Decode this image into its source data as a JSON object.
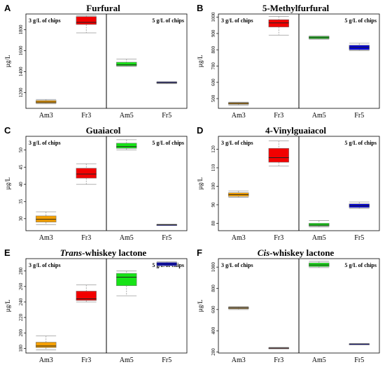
{
  "chart_data": [
    {
      "type": "box",
      "letter": "A",
      "title": "Furfural",
      "title_parts": [
        {
          "text": "Furfural",
          "italic": false
        }
      ],
      "ylabel": "µg/L",
      "notes": [
        "3 g/L of chips",
        "5 g/L of chips"
      ],
      "categories": [
        "Am3",
        "Fr3",
        "Am5",
        "Fr5"
      ],
      "colors": [
        "#f5a000",
        "#f20000",
        "#17e317",
        "#0000d8"
      ],
      "ylim": [
        1050,
        1950
      ],
      "yticks": [
        1200,
        1400,
        1600,
        1800
      ],
      "boxes": [
        {
          "min": 1095,
          "q1": 1100,
          "median": 1110,
          "q3": 1125,
          "max": 1135
        },
        {
          "min": 1770,
          "q1": 1850,
          "median": 1870,
          "q3": 1925,
          "max": 1935
        },
        {
          "min": 1450,
          "q1": 1455,
          "median": 1465,
          "q3": 1490,
          "max": 1520
        },
        {
          "min": 1285,
          "q1": 1290,
          "median": 1295,
          "q3": 1302,
          "max": 1305
        }
      ]
    },
    {
      "type": "box",
      "letter": "B",
      "title": "5-Methylfurfural",
      "title_parts": [
        {
          "text": "5-Methylfurfural",
          "italic": false
        }
      ],
      "ylabel": "µg/L",
      "notes": [
        "3 g/L of chips",
        "5 g/L of chips"
      ],
      "categories": [
        "Am3",
        "Fr3",
        "Am5",
        "Fr5"
      ],
      "colors": [
        "#f5a000",
        "#f20000",
        "#17e317",
        "#0000d8"
      ],
      "ylim": [
        440,
        1020
      ],
      "yticks": [
        500,
        600,
        700,
        800,
        900,
        1000
      ],
      "boxes": [
        {
          "min": 460,
          "q1": 465,
          "median": 470,
          "q3": 475,
          "max": 478
        },
        {
          "min": 890,
          "q1": 940,
          "median": 965,
          "q3": 985,
          "max": 1005
        },
        {
          "min": 865,
          "q1": 868,
          "median": 875,
          "q3": 882,
          "max": 885
        },
        {
          "min": 795,
          "q1": 800,
          "median": 815,
          "q3": 828,
          "max": 840
        }
      ]
    },
    {
      "type": "box",
      "letter": "C",
      "title": "Guaiacol",
      "title_parts": [
        {
          "text": "Guaiacol",
          "italic": false
        }
      ],
      "ylabel": "µg/L",
      "notes": [
        "3 g/L of chips",
        "5 g/L of chips"
      ],
      "categories": [
        "Am3",
        "Fr3",
        "Am5",
        "Fr5"
      ],
      "colors": [
        "#f5a000",
        "#f20000",
        "#17e317",
        "#0000d8"
      ],
      "ylim": [
        26.5,
        54
      ],
      "yticks": [
        30,
        35,
        40,
        45,
        50
      ],
      "boxes": [
        {
          "min": 28.3,
          "q1": 29.0,
          "median": 29.8,
          "q3": 30.8,
          "max": 32.0
        },
        {
          "min": 40.0,
          "q1": 41.8,
          "median": 43.0,
          "q3": 44.7,
          "max": 46.0
        },
        {
          "min": 50.0,
          "q1": 50.5,
          "median": 51.0,
          "q3": 52.0,
          "max": 53.0
        },
        {
          "min": 28.0,
          "q1": 28.1,
          "median": 28.2,
          "q3": 28.3,
          "max": 28.4
        }
      ]
    },
    {
      "type": "box",
      "letter": "D",
      "title": "4-Vinylguaiacol",
      "title_parts": [
        {
          "text": "4-Vinylguaiacol",
          "italic": false
        }
      ],
      "ylabel": "µg/L",
      "notes": [
        "3 g/L of chips",
        "5 g/L of chips"
      ],
      "categories": [
        "Am3",
        "Fr3",
        "Am5",
        "Fr5"
      ],
      "colors": [
        "#f5a000",
        "#f20000",
        "#17e317",
        "#0000d8"
      ],
      "ylim": [
        76,
        127
      ],
      "yticks": [
        80,
        90,
        100,
        110,
        120
      ],
      "boxes": [
        {
          "min": 94.0,
          "q1": 94.5,
          "median": 95.5,
          "q3": 96.5,
          "max": 97.5
        },
        {
          "min": 111,
          "q1": 113,
          "median": 115.5,
          "q3": 120.5,
          "max": 124.5
        },
        {
          "min": 78.0,
          "q1": 78.5,
          "median": 79.0,
          "q3": 80.0,
          "max": 81.5
        },
        {
          "min": 88.0,
          "q1": 88.5,
          "median": 89.5,
          "q3": 90.5,
          "max": 91.5
        }
      ]
    },
    {
      "type": "box",
      "letter": "E",
      "title": "Trans-whiskey lactone",
      "title_parts": [
        {
          "text": "Trans",
          "italic": true
        },
        {
          "text": "-whiskey lactone",
          "italic": false
        }
      ],
      "ylabel": "µg/L",
      "notes": [
        "3 g/L of chips",
        "5 g/L of chips"
      ],
      "categories": [
        "Am3",
        "Fr3",
        "Am5",
        "Fr5"
      ],
      "colors": [
        "#f5a000",
        "#f20000",
        "#17e317",
        "#0000d8"
      ],
      "ylim": [
        174,
        296
      ],
      "yticks": [
        180,
        200,
        220,
        240,
        260,
        280
      ],
      "boxes": [
        {
          "min": 178,
          "q1": 181,
          "median": 183,
          "q3": 188,
          "max": 196
        },
        {
          "min": 240,
          "q1": 242,
          "median": 244,
          "q3": 254,
          "max": 262
        },
        {
          "min": 248,
          "q1": 261,
          "median": 272,
          "q3": 277,
          "max": 280
        },
        {
          "min": 287,
          "q1": 287,
          "median": 289,
          "q3": 291,
          "max": 292
        }
      ]
    },
    {
      "type": "box",
      "letter": "F",
      "title": "Cis-whiskey lactone",
      "title_parts": [
        {
          "text": "Cis",
          "italic": true
        },
        {
          "text": "-whiskey lactone",
          "italic": false
        }
      ],
      "ylabel": "µg/L",
      "notes": [
        "3 g/L of chips",
        "5 g/L of chips"
      ],
      "categories": [
        "Am3",
        "Fr3",
        "Am5",
        "Fr5"
      ],
      "colors": [
        "#f5a000",
        "#f20000",
        "#17e317",
        "#0000d8"
      ],
      "ylim": [
        190,
        1080
      ],
      "yticks": [
        200,
        400,
        600,
        800,
        1000
      ],
      "boxes": [
        {
          "min": 600,
          "q1": 608,
          "median": 615,
          "q3": 622,
          "max": 628
        },
        {
          "min": 230,
          "q1": 233,
          "median": 236,
          "q3": 240,
          "max": 243
        },
        {
          "min": 995,
          "q1": 1005,
          "median": 1020,
          "q3": 1040,
          "max": 1055
        },
        {
          "min": 272,
          "q1": 274,
          "median": 275,
          "q3": 277,
          "max": 279
        }
      ]
    }
  ]
}
